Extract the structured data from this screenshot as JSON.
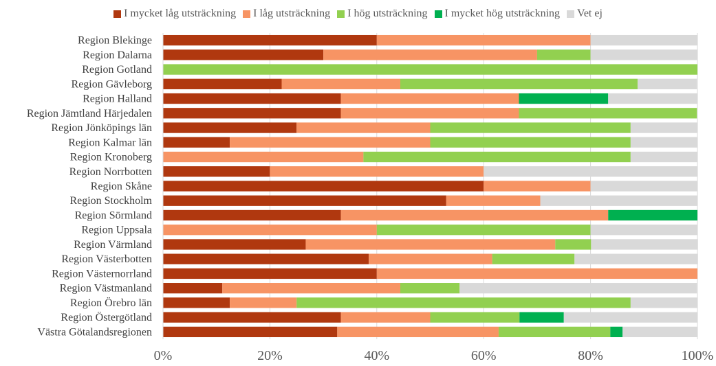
{
  "chart_data": {
    "type": "bar",
    "orientation": "horizontal",
    "stacked": true,
    "percent": true,
    "title": "",
    "xlabel": "",
    "ylabel": "",
    "xlim": [
      0,
      100
    ],
    "x_ticks": [
      "0%",
      "20%",
      "40%",
      "60%",
      "80%",
      "100%"
    ],
    "legend_position": "top",
    "grid": "vertical",
    "categories": [
      "Region Blekinge",
      "Region Dalarna",
      "Region Gotland",
      "Region Gävleborg",
      "Region Halland",
      "Region Jämtland Härjedalen",
      "Region Jönköpings län",
      "Region Kalmar län",
      "Region Kronoberg",
      "Region Norrbotten",
      "Region Skåne",
      "Region Stockholm",
      "Region Sörmland",
      "Region Uppsala",
      "Region Värmland",
      "Region Västerbotten",
      "Region Västernorrland",
      "Region Västmanland",
      "Region Örebro län",
      "Region Östergötland",
      "Västra Götalandsregionen"
    ],
    "series": [
      {
        "name": "I mycket låg utsträckning",
        "color": "#b0380f",
        "values": [
          40,
          30,
          0,
          22.2,
          33.3,
          33.3,
          25,
          12.5,
          0,
          20,
          60,
          53,
          33.3,
          0,
          26.7,
          38.5,
          40,
          11.1,
          12.5,
          33.3,
          32.6
        ]
      },
      {
        "name": "I låg utsträckning",
        "color": "#f79464",
        "values": [
          40,
          40,
          0,
          22.2,
          33.3,
          33.3,
          25,
          37.5,
          37.5,
          40,
          20,
          17.6,
          50,
          40,
          46.7,
          23.1,
          60,
          33.3,
          12.5,
          16.7,
          30.2
        ]
      },
      {
        "name": "I hög utsträckning",
        "color": "#92d050",
        "values": [
          0,
          10,
          100,
          44.4,
          0,
          33.3,
          37.5,
          37.5,
          50,
          0,
          0,
          0,
          0,
          40,
          6.7,
          15.4,
          0,
          11.1,
          62.5,
          16.7,
          20.9
        ]
      },
      {
        "name": "I mycket hög utsträckning",
        "color": "#00b050",
        "values": [
          0,
          0,
          0,
          0,
          16.7,
          0,
          0,
          0,
          0,
          0,
          0,
          0,
          16.7,
          0,
          0,
          0,
          0,
          0,
          0,
          8.3,
          2.3
        ]
      },
      {
        "name": "Vet ej",
        "color": "#d9d9d9",
        "values": [
          20,
          20,
          0,
          11.1,
          16.7,
          0,
          12.5,
          12.5,
          12.5,
          40,
          20,
          29.4,
          0,
          20,
          20,
          23.1,
          0,
          44.4,
          12.5,
          25,
          14
        ]
      }
    ]
  }
}
